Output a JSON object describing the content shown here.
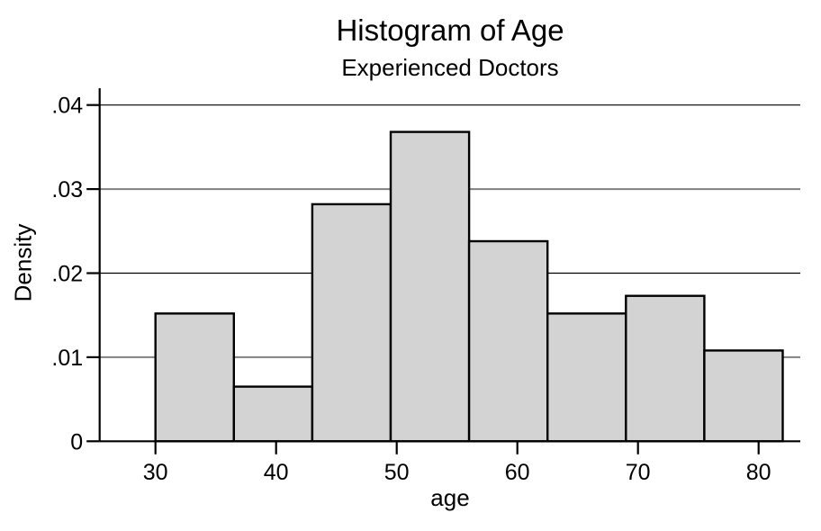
{
  "chart_data": {
    "type": "bar",
    "subtype": "histogram",
    "title": "Histogram of Age",
    "subtitle": "Experienced Doctors",
    "xlabel": "age",
    "ylabel": "Density",
    "bin_edges": [
      30,
      36.5,
      43,
      49.5,
      56,
      62.5,
      69,
      75.5,
      82
    ],
    "bin_width": 6.5,
    "densities": [
      0.0152,
      0.0065,
      0.0282,
      0.0368,
      0.0238,
      0.0152,
      0.0173,
      0.0108
    ],
    "x_ticks": [
      {
        "value": 30,
        "label": "30"
      },
      {
        "value": 40,
        "label": "40"
      },
      {
        "value": 50,
        "label": "50"
      },
      {
        "value": 60,
        "label": "60"
      },
      {
        "value": 70,
        "label": "70"
      },
      {
        "value": 80,
        "label": "80"
      }
    ],
    "y_ticks": [
      {
        "value": 0,
        "label": "0"
      },
      {
        "value": 0.01,
        "label": ".01"
      },
      {
        "value": 0.02,
        "label": ".02"
      },
      {
        "value": 0.03,
        "label": ".03"
      },
      {
        "value": 0.04,
        "label": ".04"
      }
    ],
    "ylim": [
      0,
      0.042
    ],
    "xlim": [
      30,
      82
    ],
    "grid": true,
    "legend_position": "none",
    "colors": {
      "background": "#ffffff",
      "bar_fill": "#d3d3d3",
      "bar_border": "#000000",
      "grid_line_soft": "#808080",
      "grid_line_dark": "#000000",
      "axis": "#000000",
      "text": "#000000"
    }
  }
}
